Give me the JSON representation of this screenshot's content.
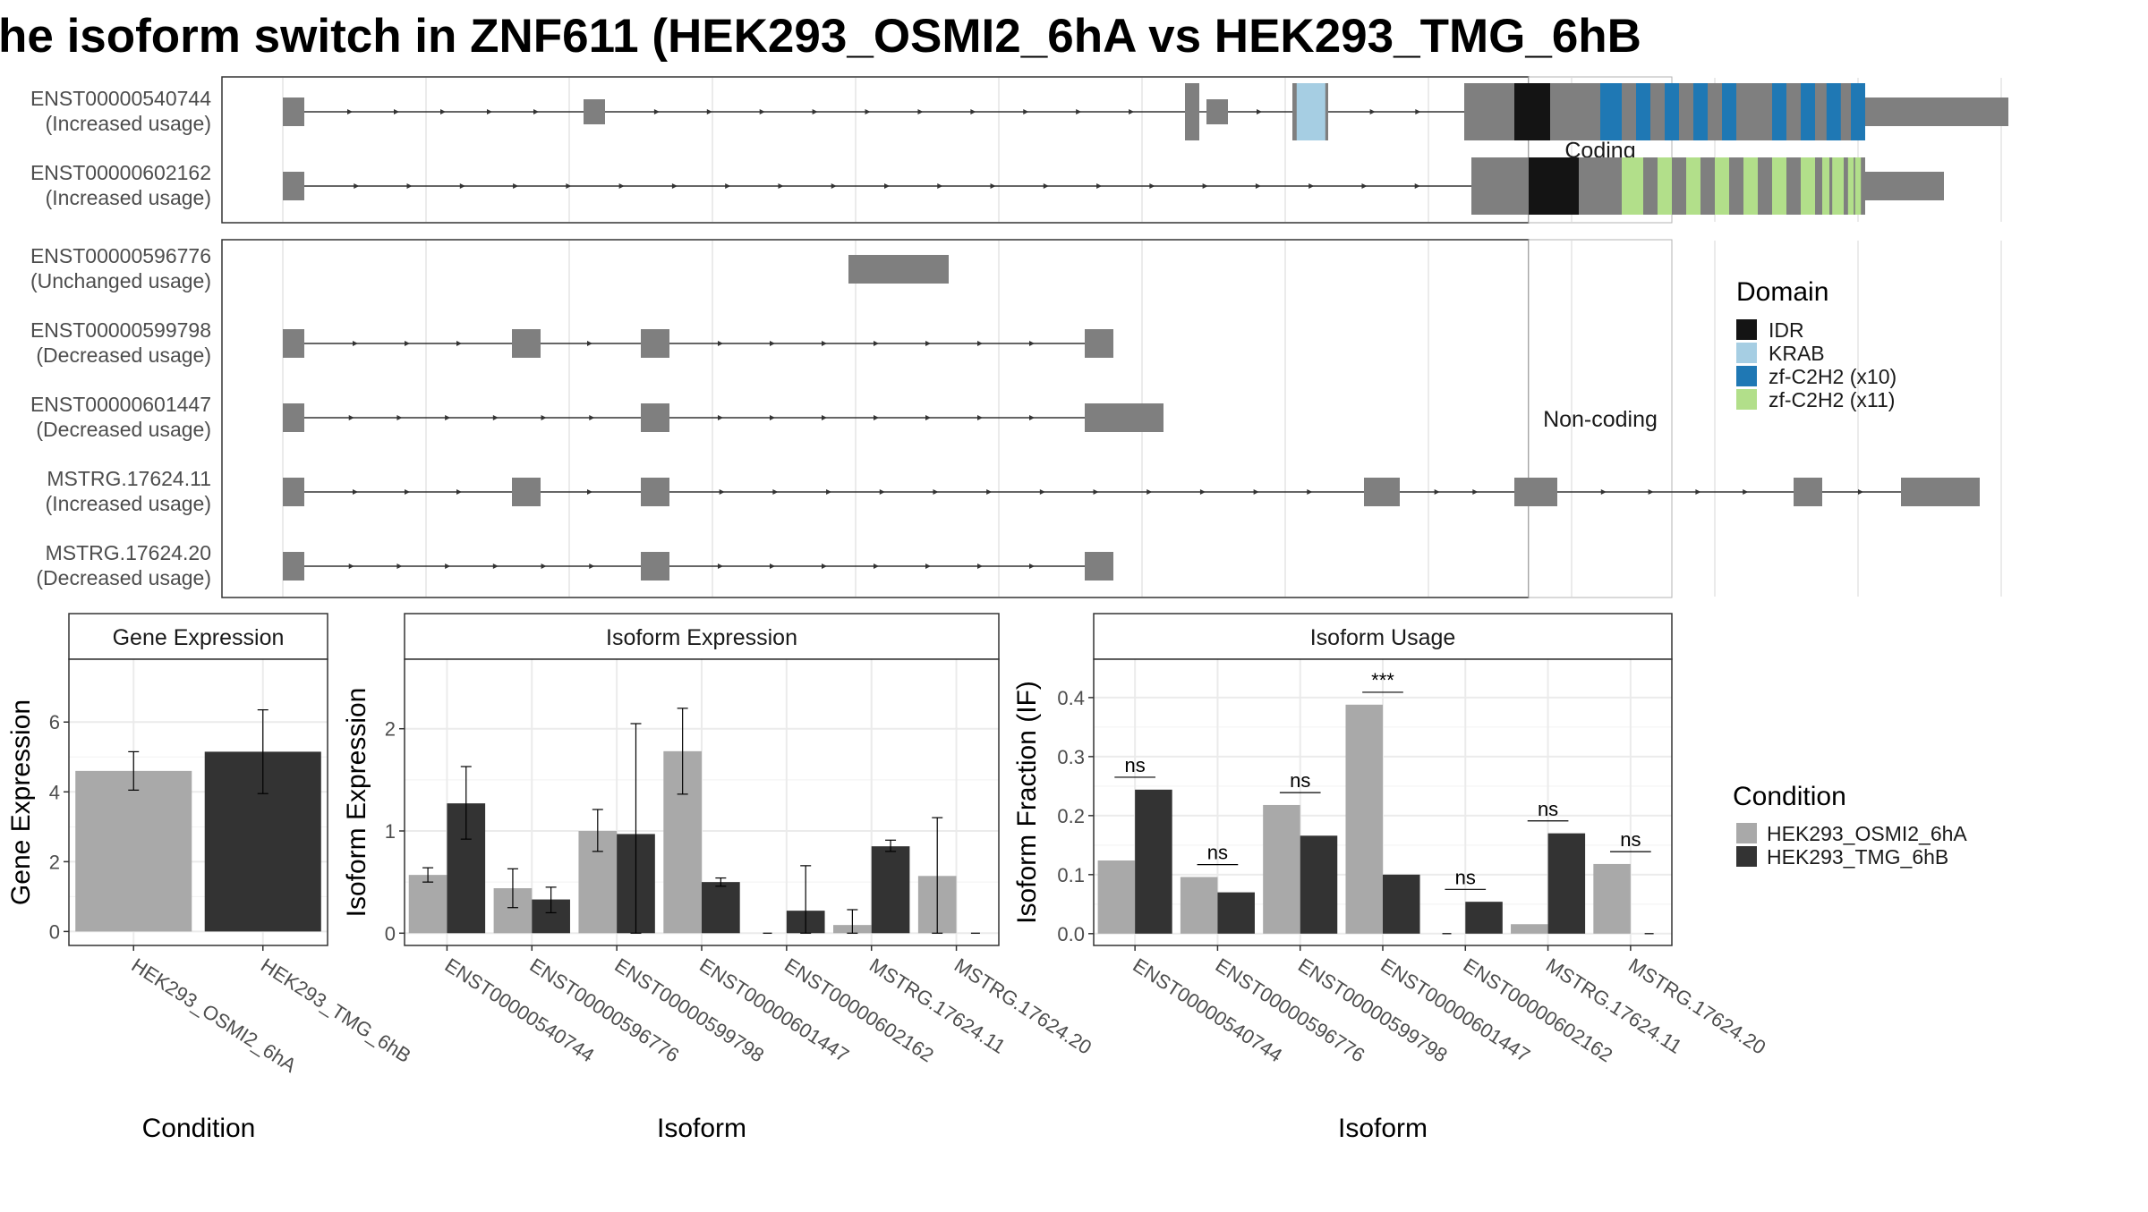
{
  "title": "he isoform switch in ZNF611 (HEK293_OSMI2_6hA vs HEK293_TMG_6hB",
  "colors": {
    "exon": "#7f7f7f",
    "IDR": "#141414",
    "KRAB": "#a6cee3",
    "zf10": "#1f78b4",
    "zf11": "#b2df8a",
    "condA": "#a9a9a9",
    "condB": "#333333",
    "grid": "#ebebeb"
  },
  "structure": {
    "coding_label": "Coding",
    "noncoding_label": "Non-coding",
    "isoforms": [
      {
        "id": "ENST00000540744",
        "usage": "(Increased usage)",
        "group": "coding",
        "exons": [
          [
            0,
            0.15
          ],
          [
            2.1,
            2.25
          ],
          [
            6.3,
            6.4
          ],
          [
            6.45,
            6.6
          ],
          [
            7.05,
            7.3
          ],
          [
            8.25,
            8.6
          ],
          [
            8.6,
            8.85
          ],
          [
            8.85,
            9.2
          ],
          [
            9.2,
            11.05
          ],
          [
            11.05,
            12.05
          ]
        ],
        "domains": [
          {
            "d": "KRAB",
            "s": 7.08,
            "e": 7.28
          },
          {
            "d": "IDR",
            "s": 8.6,
            "e": 8.85
          },
          {
            "d": "zf10",
            "s": 9.2,
            "e": 9.35
          },
          {
            "d": "zf10",
            "s": 9.45,
            "e": 9.55
          },
          {
            "d": "zf10",
            "s": 9.65,
            "e": 9.75
          },
          {
            "d": "zf10",
            "s": 9.85,
            "e": 9.95
          },
          {
            "d": "zf10",
            "s": 10.05,
            "e": 10.15
          },
          {
            "d": "zf10",
            "s": 10.4,
            "e": 10.5
          },
          {
            "d": "zf10",
            "s": 10.6,
            "e": 10.7
          },
          {
            "d": "zf10",
            "s": 10.78,
            "e": 10.88
          },
          {
            "d": "zf10",
            "s": 10.95,
            "e": 11.0
          },
          {
            "d": "zf10",
            "s": 11.0,
            "e": 11.05
          }
        ]
      },
      {
        "id": "ENST00000602162",
        "usage": "(Increased usage)",
        "group": "coding",
        "exons": [
          [
            0,
            0.15
          ],
          [
            8.3,
            8.45
          ],
          [
            8.45,
            8.7
          ],
          [
            8.7,
            9.05
          ],
          [
            9.05,
            11.05
          ],
          [
            11.05,
            11.6
          ]
        ],
        "domains": [
          {
            "d": "IDR",
            "s": 8.7,
            "e": 9.05
          },
          {
            "d": "zf11",
            "s": 9.35,
            "e": 9.5
          },
          {
            "d": "zf11",
            "s": 9.6,
            "e": 9.7
          },
          {
            "d": "zf11",
            "s": 9.8,
            "e": 9.9
          },
          {
            "d": "zf11",
            "s": 10.0,
            "e": 10.1
          },
          {
            "d": "zf11",
            "s": 10.2,
            "e": 10.3
          },
          {
            "d": "zf11",
            "s": 10.4,
            "e": 10.5
          },
          {
            "d": "zf11",
            "s": 10.6,
            "e": 10.7
          },
          {
            "d": "zf11",
            "s": 10.75,
            "e": 10.8
          },
          {
            "d": "zf11",
            "s": 10.82,
            "e": 10.9
          },
          {
            "d": "zf11",
            "s": 10.93,
            "e": 10.97
          },
          {
            "d": "zf11",
            "s": 10.98,
            "e": 11.02
          }
        ]
      },
      {
        "id": "ENST00000596776",
        "usage": "(Unchanged usage)",
        "group": "noncoding",
        "exons": [
          [
            3.95,
            4.65
          ]
        ],
        "domains": []
      },
      {
        "id": "ENST00000599798",
        "usage": "(Decreased usage)",
        "group": "noncoding",
        "exons": [
          [
            0,
            0.15
          ],
          [
            1.6,
            1.8
          ],
          [
            2.5,
            2.7
          ],
          [
            5.6,
            5.8
          ]
        ],
        "domains": []
      },
      {
        "id": "ENST00000601447",
        "usage": "(Decreased usage)",
        "group": "noncoding",
        "exons": [
          [
            0,
            0.15
          ],
          [
            2.5,
            2.7
          ],
          [
            5.6,
            6.15
          ]
        ],
        "domains": []
      },
      {
        "id": "MSTRG.17624.11",
        "usage": "(Increased usage)",
        "group": "noncoding",
        "exons": [
          [
            0,
            0.15
          ],
          [
            1.6,
            1.8
          ],
          [
            2.5,
            2.7
          ],
          [
            7.55,
            7.8
          ],
          [
            8.6,
            8.9
          ],
          [
            10.55,
            10.75
          ],
          [
            11.3,
            11.85
          ]
        ],
        "domains": []
      },
      {
        "id": "MSTRG.17624.20",
        "usage": "(Decreased usage)",
        "group": "noncoding",
        "exons": [
          [
            0,
            0.15
          ],
          [
            2.5,
            2.7
          ],
          [
            5.6,
            5.8
          ]
        ],
        "domains": []
      }
    ]
  },
  "legend": {
    "domain_title": "Domain",
    "domains": [
      {
        "key": "IDR",
        "label": "IDR"
      },
      {
        "key": "KRAB",
        "label": "KRAB"
      },
      {
        "key": "zf10",
        "label": "zf-C2H2 (x10)"
      },
      {
        "key": "zf11",
        "label": "zf-C2H2 (x11)"
      }
    ],
    "condition_title": "Condition",
    "conditions": [
      {
        "key": "condA",
        "label": "HEK293_OSMI2_6hA"
      },
      {
        "key": "condB",
        "label": "HEK293_TMG_6hB"
      }
    ]
  },
  "chart_data": [
    {
      "type": "bar",
      "title": "Gene Expression",
      "xlabel": "Condition",
      "ylabel": "Gene Expression",
      "categories": [
        "HEK293_OSMI2_6hA",
        "HEK293_TMG_6hB"
      ],
      "values": [
        4.6,
        5.15
      ],
      "errors": [
        [
          4.05,
          5.15
        ],
        [
          3.95,
          6.35
        ]
      ],
      "ylim": [
        -0.4,
        7.8
      ],
      "yticks": [
        0,
        2,
        4,
        6
      ]
    },
    {
      "type": "bar",
      "title": "Isoform Expression",
      "xlabel": "Isoform",
      "ylabel": "Isoform Expression",
      "categories": [
        "ENST00000540744",
        "ENST00000596776",
        "ENST00000599798",
        "ENST00000601447",
        "ENST00000602162",
        "MSTRG.17624.11",
        "MSTRG.17624.20"
      ],
      "series": [
        {
          "name": "HEK293_OSMI2_6hA",
          "values": [
            0.57,
            0.44,
            1.0,
            1.78,
            0.0,
            0.08,
            0.56
          ],
          "errors": [
            [
              0.5,
              0.64
            ],
            [
              0.25,
              0.63
            ],
            [
              0.8,
              1.21
            ],
            [
              1.36,
              2.2
            ],
            [
              0.0,
              0.0
            ],
            [
              0.0,
              0.23
            ],
            [
              0.0,
              1.13
            ]
          ]
        },
        {
          "name": "HEK293_TMG_6hB",
          "values": [
            1.27,
            0.33,
            0.97,
            0.5,
            0.22,
            0.85,
            0.0
          ],
          "errors": [
            [
              0.92,
              1.63
            ],
            [
              0.2,
              0.45
            ],
            [
              0.0,
              2.05
            ],
            [
              0.46,
              0.54
            ],
            [
              0.0,
              0.66
            ],
            [
              0.8,
              0.91
            ],
            [
              0.0,
              0.0
            ]
          ]
        }
      ],
      "ylim": [
        -0.12,
        2.68
      ],
      "yticks": [
        0,
        1,
        2
      ]
    },
    {
      "type": "bar",
      "title": "Isoform Usage",
      "xlabel": "Isoform",
      "ylabel": "Isoform Fraction (IF)",
      "categories": [
        "ENST00000540744",
        "ENST00000596776",
        "ENST00000599798",
        "ENST00000601447",
        "ENST00000602162",
        "MSTRG.17624.11",
        "MSTRG.17624.20"
      ],
      "series": [
        {
          "name": "HEK293_OSMI2_6hA",
          "values": [
            0.124,
            0.096,
            0.218,
            0.388,
            0.0,
            0.016,
            0.118
          ]
        },
        {
          "name": "HEK293_TMG_6hB",
          "values": [
            0.244,
            0.07,
            0.166,
            0.1,
            0.054,
            0.17,
            0.0
          ]
        }
      ],
      "significance": [
        "ns",
        "ns",
        "ns",
        "***",
        "ns",
        "ns",
        "ns"
      ],
      "sig_y": [
        0.265,
        0.117,
        0.239,
        0.409,
        0.075,
        0.191,
        0.139
      ],
      "ylim": [
        -0.02,
        0.465
      ],
      "yticks": [
        0.0,
        0.1,
        0.2,
        0.3,
        0.4
      ],
      "ytick_labels": [
        "0.0",
        "0.1",
        "0.2",
        "0.3",
        "0.4"
      ]
    }
  ]
}
